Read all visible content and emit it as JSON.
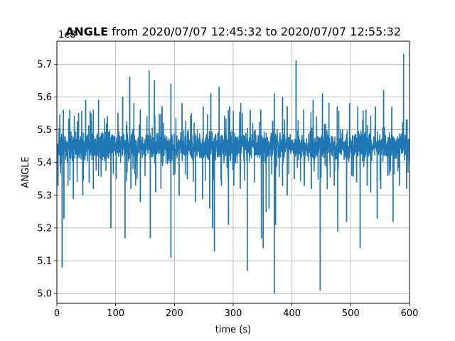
{
  "chart_data": {
    "type": "line",
    "title_bold": "ANGLE",
    "title_rest": " from 2020/07/07 12:45:32 to 2020/07/07 12:55:32",
    "xlabel": "time (s)",
    "ylabel": "ANGLE",
    "y_offset_label": "1e8",
    "xlim": [
      0,
      600
    ],
    "ylim": [
      4.97,
      5.77
    ],
    "x_ticks": [
      0,
      100,
      200,
      300,
      400,
      500,
      600
    ],
    "x_tick_labels": [
      "0",
      "100",
      "200",
      "300",
      "400",
      "500",
      "600"
    ],
    "y_ticks": [
      5.0,
      5.1,
      5.2,
      5.3,
      5.4,
      5.5,
      5.6,
      5.7
    ],
    "y_tick_labels": [
      "5.0",
      "5.1",
      "5.2",
      "5.3",
      "5.4",
      "5.5",
      "5.6",
      "5.7"
    ],
    "grid": true,
    "line_color": "#1f77b4",
    "baseline": 5.45,
    "band_half_width": 0.06,
    "spikes_up": [
      {
        "x": 11,
        "y": 5.56
      },
      {
        "x": 22,
        "y": 5.56
      },
      {
        "x": 37,
        "y": 5.55
      },
      {
        "x": 49,
        "y": 5.59
      },
      {
        "x": 62,
        "y": 5.56
      },
      {
        "x": 71,
        "y": 5.59
      },
      {
        "x": 86,
        "y": 5.54
      },
      {
        "x": 104,
        "y": 5.55
      },
      {
        "x": 112,
        "y": 5.6
      },
      {
        "x": 124,
        "y": 5.66
      },
      {
        "x": 131,
        "y": 5.58
      },
      {
        "x": 142,
        "y": 5.56
      },
      {
        "x": 157,
        "y": 5.68
      },
      {
        "x": 166,
        "y": 5.65
      },
      {
        "x": 179,
        "y": 5.57
      },
      {
        "x": 194,
        "y": 5.64
      },
      {
        "x": 213,
        "y": 5.58
      },
      {
        "x": 229,
        "y": 5.55
      },
      {
        "x": 249,
        "y": 5.57
      },
      {
        "x": 262,
        "y": 5.61
      },
      {
        "x": 276,
        "y": 5.63
      },
      {
        "x": 294,
        "y": 5.57
      },
      {
        "x": 313,
        "y": 5.58
      },
      {
        "x": 329,
        "y": 5.56
      },
      {
        "x": 347,
        "y": 5.56
      },
      {
        "x": 370,
        "y": 5.61
      },
      {
        "x": 384,
        "y": 5.6
      },
      {
        "x": 392,
        "y": 5.57
      },
      {
        "x": 407,
        "y": 5.71
      },
      {
        "x": 420,
        "y": 5.56
      },
      {
        "x": 436,
        "y": 5.59
      },
      {
        "x": 452,
        "y": 5.61
      },
      {
        "x": 463,
        "y": 5.58
      },
      {
        "x": 477,
        "y": 5.57
      },
      {
        "x": 498,
        "y": 5.58
      },
      {
        "x": 512,
        "y": 5.57
      },
      {
        "x": 526,
        "y": 5.56
      },
      {
        "x": 542,
        "y": 5.57
      },
      {
        "x": 556,
        "y": 5.62
      },
      {
        "x": 570,
        "y": 5.57
      },
      {
        "x": 590,
        "y": 5.73
      },
      {
        "x": 596,
        "y": 5.53
      }
    ],
    "spikes_down": [
      {
        "x": 2,
        "y": 5.33
      },
      {
        "x": 9,
        "y": 5.08
      },
      {
        "x": 12,
        "y": 5.23
      },
      {
        "x": 19,
        "y": 5.33
      },
      {
        "x": 28,
        "y": 5.29
      },
      {
        "x": 44,
        "y": 5.3
      },
      {
        "x": 55,
        "y": 5.34
      },
      {
        "x": 62,
        "y": 5.32
      },
      {
        "x": 92,
        "y": 5.2
      },
      {
        "x": 101,
        "y": 5.35
      },
      {
        "x": 116,
        "y": 5.17
      },
      {
        "x": 126,
        "y": 5.32
      },
      {
        "x": 134,
        "y": 5.33
      },
      {
        "x": 142,
        "y": 5.28
      },
      {
        "x": 159,
        "y": 5.17
      },
      {
        "x": 168,
        "y": 5.31
      },
      {
        "x": 177,
        "y": 5.32
      },
      {
        "x": 194,
        "y": 5.11
      },
      {
        "x": 208,
        "y": 5.3
      },
      {
        "x": 222,
        "y": 5.35
      },
      {
        "x": 236,
        "y": 5.28
      },
      {
        "x": 248,
        "y": 5.29
      },
      {
        "x": 260,
        "y": 5.26
      },
      {
        "x": 265,
        "y": 5.2
      },
      {
        "x": 268,
        "y": 5.13
      },
      {
        "x": 280,
        "y": 5.33
      },
      {
        "x": 292,
        "y": 5.21
      },
      {
        "x": 301,
        "y": 5.33
      },
      {
        "x": 312,
        "y": 5.32
      },
      {
        "x": 324,
        "y": 5.07
      },
      {
        "x": 336,
        "y": 5.34
      },
      {
        "x": 348,
        "y": 5.17
      },
      {
        "x": 351,
        "y": 5.14
      },
      {
        "x": 356,
        "y": 5.25
      },
      {
        "x": 361,
        "y": 5.26
      },
      {
        "x": 370,
        "y": 5.0
      },
      {
        "x": 372,
        "y": 5.21
      },
      {
        "x": 384,
        "y": 5.33
      },
      {
        "x": 392,
        "y": 5.3
      },
      {
        "x": 404,
        "y": 5.35
      },
      {
        "x": 421,
        "y": 5.33
      },
      {
        "x": 433,
        "y": 5.32
      },
      {
        "x": 448,
        "y": 5.01
      },
      {
        "x": 460,
        "y": 5.32
      },
      {
        "x": 472,
        "y": 5.33
      },
      {
        "x": 478,
        "y": 5.19
      },
      {
        "x": 493,
        "y": 5.22
      },
      {
        "x": 502,
        "y": 5.36
      },
      {
        "x": 510,
        "y": 5.34
      },
      {
        "x": 516,
        "y": 5.14
      },
      {
        "x": 528,
        "y": 5.33
      },
      {
        "x": 534,
        "y": 5.31
      },
      {
        "x": 545,
        "y": 5.23
      },
      {
        "x": 551,
        "y": 5.32
      },
      {
        "x": 563,
        "y": 5.36
      },
      {
        "x": 572,
        "y": 5.22
      },
      {
        "x": 583,
        "y": 5.33
      },
      {
        "x": 595,
        "y": 5.32
      }
    ]
  }
}
